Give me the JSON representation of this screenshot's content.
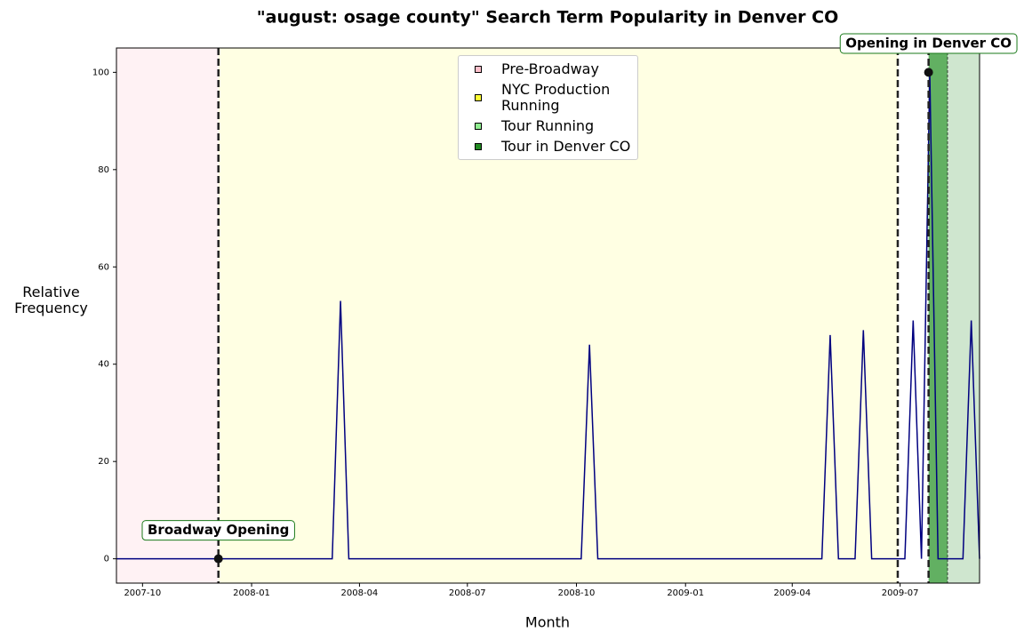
{
  "chart_data": {
    "type": "line",
    "title": "\"august: osage county\" Search Term Popularity in Denver CO",
    "x_label": "Month",
    "y_label": "Relative Frequency",
    "x": [
      13765,
      13772,
      13779,
      13786,
      13793,
      13800,
      13807,
      13814,
      13821,
      13828,
      13835,
      13842,
      13849,
      13856,
      13863,
      13870,
      13877,
      13884,
      13891,
      13898,
      13905,
      13912,
      13919,
      13926,
      13933,
      13940,
      13947,
      13954,
      13961,
      13968,
      13975,
      13982,
      13989,
      13996,
      14003,
      14010,
      14017,
      14024,
      14031,
      14038,
      14045,
      14052,
      14059,
      14066,
      14073,
      14080,
      14087,
      14094,
      14101,
      14108,
      14115,
      14122,
      14129,
      14136,
      14143,
      14150,
      14157,
      14164,
      14171,
      14178,
      14185,
      14192,
      14199,
      14206,
      14213,
      14220,
      14227,
      14234,
      14241,
      14248,
      14255,
      14262,
      14269,
      14276,
      14283,
      14290,
      14297,
      14304,
      14311,
      14318,
      14325,
      14332,
      14339,
      14346,
      14353,
      14360,
      14367,
      14374,
      14381,
      14388,
      14395,
      14402,
      14409,
      14416,
      14423,
      14430,
      14437,
      14444,
      14451,
      14458,
      14465,
      14472,
      14479,
      14486,
      14493
    ],
    "series": [
      {
        "color": "#000080",
        "values": [
          0,
          0,
          0,
          0,
          0,
          0,
          0,
          0,
          0,
          0,
          0,
          0,
          0,
          0,
          0,
          0,
          0,
          0,
          0,
          0,
          0,
          0,
          0,
          0,
          0,
          0,
          0,
          53,
          0,
          0,
          0,
          0,
          0,
          0,
          0,
          0,
          0,
          0,
          0,
          0,
          0,
          0,
          0,
          0,
          0,
          0,
          0,
          0,
          0,
          0,
          0,
          0,
          0,
          0,
          0,
          0,
          0,
          44,
          0,
          0,
          0,
          0,
          0,
          0,
          0,
          0,
          0,
          0,
          0,
          0,
          0,
          0,
          0,
          0,
          0,
          0,
          0,
          0,
          0,
          0,
          0,
          0,
          0,
          0,
          0,
          0,
          46,
          0,
          0,
          0,
          47,
          0,
          0,
          0,
          0,
          0,
          49,
          0,
          100,
          0,
          0,
          0,
          0,
          49,
          0
        ]
      }
    ],
    "xlim": [
      13765,
      14493
    ],
    "xticks": [
      {
        "value": 13787,
        "label": "2007-10"
      },
      {
        "value": 13879,
        "label": "2008-01"
      },
      {
        "value": 13970,
        "label": "2008-04"
      },
      {
        "value": 14061,
        "label": "2008-07"
      },
      {
        "value": 14153,
        "label": "2008-10"
      },
      {
        "value": 14245,
        "label": "2009-01"
      },
      {
        "value": 14335,
        "label": "2009-04"
      },
      {
        "value": 14426,
        "label": "2009-07"
      }
    ],
    "ylim": [
      -5,
      105
    ],
    "yticks": [
      0,
      20,
      40,
      60,
      80,
      100
    ],
    "regions": [
      {
        "name": "Pre-Broadway",
        "color": "#ffc0cb",
        "fill": "#fff2f4",
        "start": 13765,
        "end": 13851
      },
      {
        "name": "NYC Production Running",
        "color": "#ffff33",
        "fill": "#ffffe3",
        "start": 13851,
        "end": 14424
      },
      {
        "name": "Tour Running",
        "color": "#90ee90",
        "fill": "#cfe6cf",
        "start": 14466,
        "end": 14493
      },
      {
        "name": "Tour in Denver CO",
        "color": "#228b22",
        "fill": "#62b062",
        "start": 14450,
        "end": 14466
      }
    ],
    "vlines": [
      13851,
      14424,
      14450
    ],
    "annotations": [
      {
        "text": "Broadway Opening",
        "x": 13851,
        "y": 0
      },
      {
        "text": "Opening in Denver CO",
        "x": 14450,
        "y": 100
      }
    ]
  }
}
